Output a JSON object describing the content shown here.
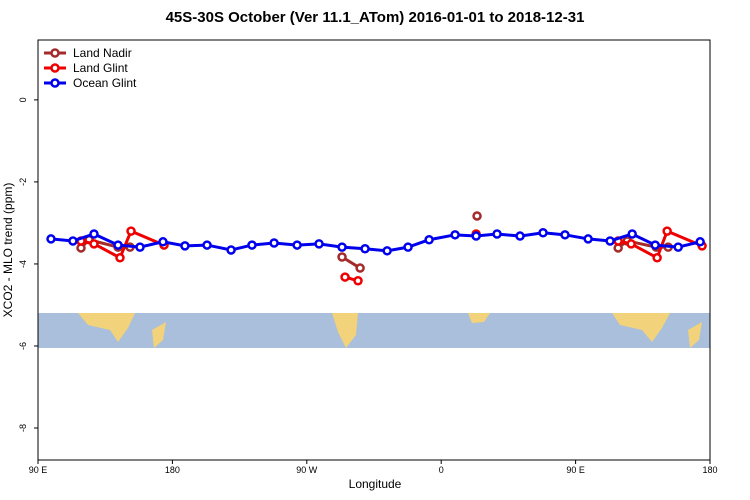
{
  "chart_data": {
    "type": "line",
    "title": "45S-30S October (Ver 11.1_ATom)   2016-01-01 to 2018-12-31",
    "x_label": "Longitude",
    "y_label": "XCO2 - MLO trend (ppm)",
    "xlim": [
      90,
      540
    ],
    "xticks": [
      {
        "value": 90,
        "label": "90 E"
      },
      180,
      {
        "value": 270,
        "label": "90 W"
      },
      {
        "value": 360,
        "label": "0"
      },
      {
        "value": 450,
        "label": "90 E"
      },
      {
        "value": 540,
        "label": "180"
      }
    ],
    "ylim": [
      -8.78,
      1.46
    ],
    "yticks": [
      0,
      -2,
      -4,
      -6,
      -8
    ],
    "legend": "top-left",
    "series": [
      {
        "name": "Land Nadir",
        "color": "#a52a2a",
        "x": [
          118.8,
          124.2,
          143.6,
          151.6,
          null,
          293.6,
          305.7,
          null,
          384.0,
          null,
          478.5,
          484.6,
          504.0,
          512.0
        ],
        "values": [
          -3.61,
          -3.41,
          -3.59,
          -3.59,
          null,
          -3.83,
          -4.1,
          null,
          -2.83,
          null,
          -3.61,
          -3.44,
          -3.59,
          -3.59
        ]
      },
      {
        "name": "Land Glint",
        "color": "#ee0000",
        "x": [
          118.8,
          127.5,
          144.9,
          152.3,
          174.4,
          null,
          295.6,
          304.3,
          null,
          383.4,
          null,
          478.5,
          487.2,
          504.6,
          511.3,
          534.7
        ],
        "values": [
          -3.44,
          -3.51,
          -3.85,
          -3.2,
          -3.54,
          null,
          -4.32,
          -4.41,
          null,
          -3.27,
          null,
          -3.44,
          -3.51,
          -3.85,
          -3.2,
          -3.56
        ]
      },
      {
        "name": "Ocean Glint",
        "color": "#0000ee",
        "x": [
          98.7,
          113.4,
          127.5,
          143.6,
          158.3,
          173.7,
          188.4,
          203.2,
          219.3,
          233.3,
          248.1,
          263.5,
          278.2,
          293.6,
          309.0,
          323.8,
          337.8,
          351.9,
          369.3,
          383.4,
          397.4,
          412.8,
          428.2,
          442.9,
          458.4,
          473.1,
          487.9,
          503.3,
          518.7,
          533.4
        ],
        "values": [
          -3.39,
          -3.44,
          -3.27,
          -3.54,
          -3.59,
          -3.46,
          -3.56,
          -3.54,
          -3.66,
          -3.54,
          -3.49,
          -3.54,
          -3.51,
          -3.59,
          -3.63,
          -3.68,
          -3.59,
          -3.41,
          -3.29,
          -3.32,
          -3.27,
          -3.32,
          -3.24,
          -3.29,
          -3.39,
          -3.44,
          -3.27,
          -3.54,
          -3.59,
          -3.46
        ]
      }
    ]
  }
}
